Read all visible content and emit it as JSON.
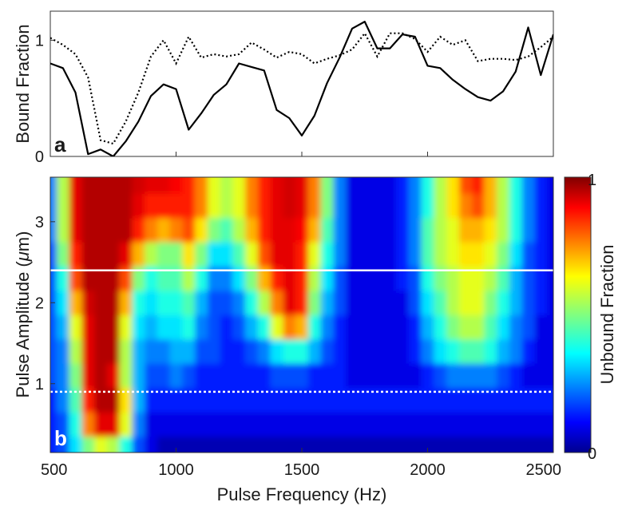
{
  "chart_data": [
    {
      "panel_label": "a",
      "type": "line",
      "ylabel": "Bound Fraction",
      "xlim": [
        500,
        2500
      ],
      "ylim": [
        0,
        1.25
      ],
      "yticks": [
        "0",
        "1"
      ],
      "grid": false,
      "series": [
        {
          "style": "solid",
          "color": "#000000",
          "x": [
            500,
            550,
            600,
            650,
            700,
            750,
            800,
            850,
            900,
            950,
            1000,
            1050,
            1100,
            1150,
            1200,
            1250,
            1300,
            1350,
            1400,
            1450,
            1500,
            1550,
            1600,
            1650,
            1700,
            1750,
            1800,
            1850,
            1900,
            1950,
            2000,
            2050,
            2100,
            2150,
            2200,
            2250,
            2300,
            2350,
            2400,
            2450,
            2500
          ],
          "y": [
            0.8,
            0.76,
            0.55,
            0.02,
            0.06,
            0.0,
            0.13,
            0.3,
            0.52,
            0.62,
            0.58,
            0.23,
            0.37,
            0.53,
            0.62,
            0.8,
            0.77,
            0.74,
            0.4,
            0.33,
            0.18,
            0.35,
            0.63,
            0.85,
            1.1,
            1.16,
            0.93,
            0.93,
            1.05,
            1.03,
            0.78,
            0.76,
            0.66,
            0.58,
            0.51,
            0.48,
            0.56,
            0.73,
            1.11,
            0.7,
            1.05
          ]
        },
        {
          "style": "dotted",
          "color": "#000000",
          "x": [
            500,
            550,
            600,
            650,
            700,
            750,
            800,
            850,
            900,
            950,
            1000,
            1050,
            1100,
            1150,
            1200,
            1250,
            1300,
            1350,
            1400,
            1450,
            1500,
            1550,
            1600,
            1650,
            1700,
            1750,
            1800,
            1850,
            1900,
            1950,
            2000,
            2050,
            2100,
            2150,
            2200,
            2250,
            2300,
            2350,
            2400,
            2450,
            2500
          ],
          "y": [
            1.02,
            0.96,
            0.88,
            0.68,
            0.14,
            0.11,
            0.3,
            0.55,
            0.86,
            1.0,
            0.8,
            1.03,
            0.85,
            0.88,
            0.86,
            0.88,
            0.98,
            0.92,
            0.85,
            0.9,
            0.88,
            0.8,
            0.84,
            0.87,
            0.92,
            1.06,
            0.86,
            1.06,
            1.06,
            1.01,
            0.9,
            1.03,
            0.96,
            1.0,
            0.82,
            0.84,
            0.84,
            0.83,
            0.86,
            0.94,
            1.03
          ]
        }
      ]
    },
    {
      "panel_label": "b",
      "type": "heatmap",
      "xlabel": "Pulse Frequency (Hz)",
      "ylabel_pre": "Pulse Amplitude (",
      "ylabel_mu": "μ",
      "ylabel_post": "m)",
      "xlim": [
        500,
        2500
      ],
      "ylim": [
        0.15,
        3.55
      ],
      "xticks": [
        500,
        1000,
        1500,
        2000,
        2500
      ],
      "yticks": [
        1,
        2,
        3
      ],
      "colormap": "jet",
      "colorbar": {
        "label": "Unbound Fraction",
        "range": [
          0,
          1
        ],
        "ticks": [
          "0",
          "1"
        ]
      },
      "reference_lines": [
        {
          "style": "solid",
          "color": "#ffffff",
          "y": 2.4
        },
        {
          "style": "dotted",
          "color": "#ffffff",
          "y": 0.9
        }
      ],
      "x": [
        500,
        550,
        600,
        650,
        700,
        750,
        800,
        850,
        900,
        950,
        1000,
        1050,
        1100,
        1150,
        1200,
        1250,
        1300,
        1350,
        1400,
        1450,
        1500,
        1550,
        1600,
        1650,
        1700,
        1750,
        1800,
        1850,
        1900,
        1950,
        2000,
        2050,
        2100,
        2150,
        2200,
        2250,
        2300,
        2350,
        2400,
        2450,
        2500
      ],
      "y": [
        0.2,
        0.5,
        0.8,
        1.1,
        1.4,
        1.7,
        2.0,
        2.3,
        2.6,
        2.9,
        3.2,
        3.5
      ],
      "z": [
        [
          0.15,
          0.2,
          0.35,
          0.5,
          0.6,
          0.55,
          0.4,
          0.2,
          0.1,
          0.05,
          0.05,
          0.05,
          0.05,
          0.05,
          0.05,
          0.05,
          0.05,
          0.05,
          0.05,
          0.05,
          0.05,
          0.05,
          0.05,
          0.05,
          0.05,
          0.05,
          0.05,
          0.05,
          0.05,
          0.05,
          0.05,
          0.05,
          0.05,
          0.05,
          0.05,
          0.05,
          0.05,
          0.05,
          0.05,
          0.05,
          0.05
        ],
        [
          0.15,
          0.2,
          0.4,
          0.75,
          0.9,
          0.9,
          0.6,
          0.25,
          0.1,
          0.1,
          0.1,
          0.1,
          0.1,
          0.1,
          0.1,
          0.1,
          0.1,
          0.1,
          0.1,
          0.1,
          0.1,
          0.1,
          0.1,
          0.1,
          0.1,
          0.1,
          0.1,
          0.1,
          0.1,
          0.1,
          0.1,
          0.1,
          0.1,
          0.1,
          0.1,
          0.1,
          0.1,
          0.1,
          0.1,
          0.1,
          0.1
        ],
        [
          0.15,
          0.25,
          0.45,
          0.85,
          0.95,
          0.95,
          0.65,
          0.3,
          0.15,
          0.15,
          0.15,
          0.15,
          0.15,
          0.15,
          0.15,
          0.15,
          0.15,
          0.15,
          0.15,
          0.15,
          0.15,
          0.15,
          0.15,
          0.15,
          0.15,
          0.15,
          0.15,
          0.15,
          0.15,
          0.15,
          0.15,
          0.15,
          0.15,
          0.15,
          0.15,
          0.15,
          0.15,
          0.15,
          0.15,
          0.15,
          0.15
        ],
        [
          0.2,
          0.25,
          0.5,
          0.9,
          0.95,
          0.9,
          0.55,
          0.3,
          0.2,
          0.2,
          0.25,
          0.2,
          0.15,
          0.15,
          0.15,
          0.15,
          0.15,
          0.15,
          0.2,
          0.2,
          0.2,
          0.15,
          0.15,
          0.15,
          0.1,
          0.1,
          0.1,
          0.1,
          0.1,
          0.1,
          0.15,
          0.2,
          0.25,
          0.25,
          0.25,
          0.25,
          0.2,
          0.15,
          0.1,
          0.1,
          0.1
        ],
        [
          0.2,
          0.25,
          0.55,
          0.9,
          0.95,
          0.95,
          0.55,
          0.3,
          0.25,
          0.25,
          0.3,
          0.3,
          0.2,
          0.2,
          0.15,
          0.15,
          0.2,
          0.25,
          0.35,
          0.4,
          0.4,
          0.3,
          0.2,
          0.15,
          0.1,
          0.1,
          0.1,
          0.1,
          0.1,
          0.15,
          0.25,
          0.35,
          0.4,
          0.45,
          0.45,
          0.4,
          0.3,
          0.25,
          0.15,
          0.1,
          0.1
        ],
        [
          0.2,
          0.3,
          0.6,
          0.9,
          0.95,
          0.95,
          0.6,
          0.35,
          0.3,
          0.35,
          0.35,
          0.4,
          0.25,
          0.2,
          0.15,
          0.2,
          0.3,
          0.4,
          0.6,
          0.75,
          0.7,
          0.4,
          0.25,
          0.15,
          0.1,
          0.1,
          0.1,
          0.1,
          0.1,
          0.15,
          0.3,
          0.4,
          0.5,
          0.55,
          0.55,
          0.45,
          0.35,
          0.25,
          0.2,
          0.1,
          0.1
        ],
        [
          0.2,
          0.35,
          0.7,
          0.92,
          0.95,
          0.95,
          0.7,
          0.4,
          0.35,
          0.4,
          0.4,
          0.45,
          0.3,
          0.2,
          0.2,
          0.25,
          0.4,
          0.55,
          0.75,
          0.9,
          0.85,
          0.5,
          0.3,
          0.2,
          0.1,
          0.1,
          0.1,
          0.1,
          0.1,
          0.2,
          0.35,
          0.45,
          0.55,
          0.6,
          0.6,
          0.5,
          0.4,
          0.3,
          0.2,
          0.15,
          0.1
        ],
        [
          0.2,
          0.4,
          0.8,
          0.95,
          0.95,
          0.95,
          0.8,
          0.5,
          0.4,
          0.45,
          0.45,
          0.55,
          0.4,
          0.25,
          0.25,
          0.35,
          0.5,
          0.7,
          0.85,
          0.9,
          0.85,
          0.55,
          0.35,
          0.2,
          0.1,
          0.1,
          0.1,
          0.1,
          0.15,
          0.2,
          0.4,
          0.5,
          0.55,
          0.6,
          0.6,
          0.55,
          0.45,
          0.3,
          0.2,
          0.15,
          0.1
        ],
        [
          0.2,
          0.5,
          0.85,
          0.95,
          0.95,
          0.95,
          0.9,
          0.7,
          0.55,
          0.5,
          0.5,
          0.65,
          0.5,
          0.35,
          0.35,
          0.45,
          0.6,
          0.8,
          0.9,
          0.9,
          0.85,
          0.6,
          0.4,
          0.25,
          0.1,
          0.1,
          0.1,
          0.1,
          0.15,
          0.25,
          0.45,
          0.55,
          0.6,
          0.65,
          0.65,
          0.6,
          0.5,
          0.35,
          0.2,
          0.15,
          0.1
        ],
        [
          0.25,
          0.55,
          0.9,
          0.95,
          0.95,
          0.95,
          0.95,
          0.85,
          0.75,
          0.7,
          0.75,
          0.8,
          0.65,
          0.5,
          0.45,
          0.55,
          0.7,
          0.85,
          0.9,
          0.9,
          0.88,
          0.7,
          0.45,
          0.25,
          0.1,
          0.1,
          0.1,
          0.1,
          0.15,
          0.25,
          0.45,
          0.55,
          0.6,
          0.7,
          0.7,
          0.65,
          0.55,
          0.4,
          0.25,
          0.15,
          0.1
        ],
        [
          0.25,
          0.55,
          0.9,
          0.95,
          0.95,
          0.95,
          0.95,
          0.9,
          0.85,
          0.85,
          0.85,
          0.85,
          0.75,
          0.6,
          0.55,
          0.6,
          0.75,
          0.85,
          0.9,
          0.92,
          0.9,
          0.75,
          0.5,
          0.25,
          0.1,
          0.1,
          0.1,
          0.1,
          0.15,
          0.25,
          0.4,
          0.55,
          0.65,
          0.75,
          0.8,
          0.7,
          0.55,
          0.4,
          0.25,
          0.15,
          0.1
        ],
        [
          0.25,
          0.55,
          0.9,
          0.95,
          0.95,
          0.95,
          0.95,
          0.92,
          0.9,
          0.9,
          0.88,
          0.85,
          0.75,
          0.6,
          0.55,
          0.6,
          0.75,
          0.85,
          0.9,
          0.92,
          0.9,
          0.75,
          0.5,
          0.25,
          0.1,
          0.1,
          0.1,
          0.1,
          0.15,
          0.25,
          0.4,
          0.55,
          0.65,
          0.8,
          0.85,
          0.7,
          0.55,
          0.4,
          0.25,
          0.15,
          0.1
        ]
      ]
    }
  ]
}
